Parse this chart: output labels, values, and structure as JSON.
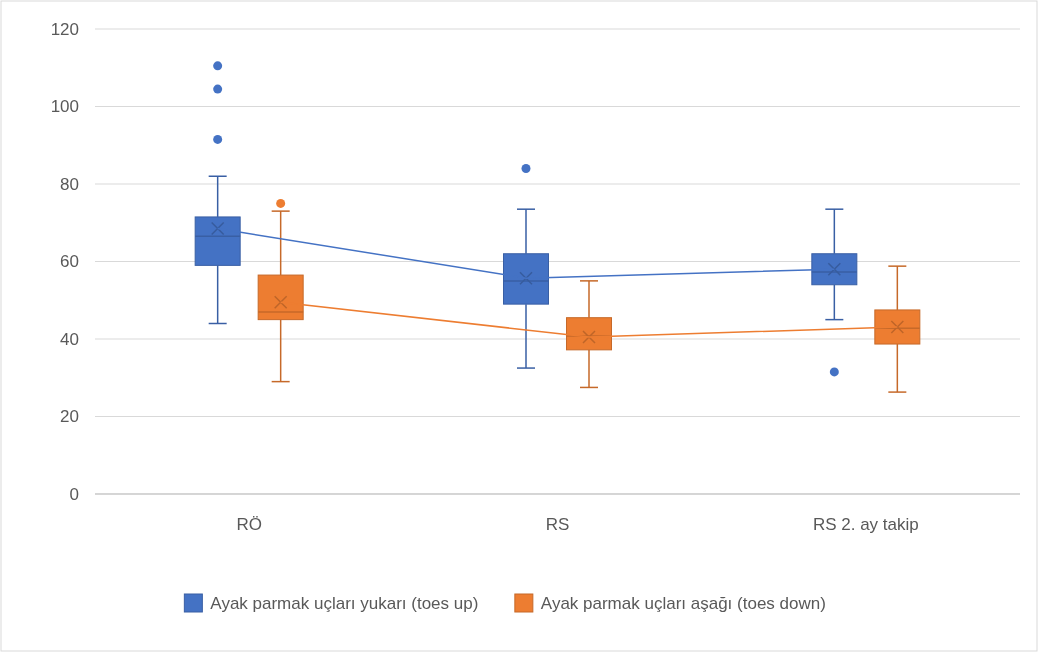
{
  "chart_data": {
    "type": "box",
    "categories": [
      "RÖ",
      "RS",
      "RS 2. ay takip"
    ],
    "ylim": [
      0,
      120
    ],
    "yticks": [
      0,
      20,
      40,
      60,
      80,
      100,
      120
    ],
    "grid": "y",
    "legend": "bottom",
    "marker": "cross",
    "series": [
      {
        "name": "Ayak parmak uçları yukarı (toes up)",
        "color": "#4472c4",
        "boxes": [
          {
            "low": 44,
            "q1": 59,
            "median": 66.5,
            "q3": 71.5,
            "high": 82,
            "mean": 68.5,
            "outliers": [
              110.5,
              104.5,
              91.5
            ]
          },
          {
            "low": 32.5,
            "q1": 49,
            "median": 55,
            "q3": 62,
            "high": 73.5,
            "mean": 55.7,
            "outliers": [
              84
            ]
          },
          {
            "low": 45,
            "q1": 54,
            "median": 57.3,
            "q3": 62,
            "high": 73.5,
            "mean": 58,
            "outliers": [
              31.5
            ]
          }
        ]
      },
      {
        "name": "Ayak parmak uçları aşağı (toes down)",
        "color": "#ed7d31",
        "boxes": [
          {
            "low": 29,
            "q1": 45,
            "median": 47,
            "q3": 56.5,
            "high": 73,
            "mean": 49.5,
            "outliers": [
              75
            ]
          },
          {
            "low": 27.5,
            "q1": 37.2,
            "median": 40.8,
            "q3": 45.5,
            "high": 55,
            "mean": 40.5
          },
          {
            "low": 26.3,
            "q1": 38.7,
            "median": 42.8,
            "q3": 47.5,
            "high": 58.8,
            "mean": 43.1
          }
        ]
      },
      {
        "type": "line",
        "color": "#4472c4",
        "marker": "none",
        "values": [
          68.5,
          55.7,
          58
        ]
      },
      {
        "type": "line",
        "color": "#ed7d31",
        "marker": "none",
        "values": [
          49.5,
          40.5,
          43.1
        ]
      }
    ]
  }
}
